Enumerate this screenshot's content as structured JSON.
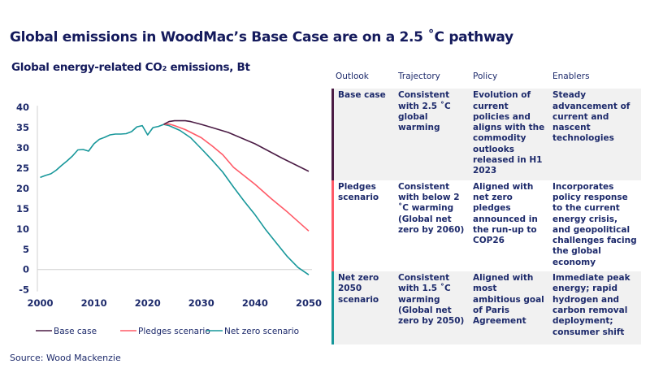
{
  "title": "Global emissions in WoodMac’s Base Case are on a 2.5 ˚C pathway",
  "subtitle": "Global energy-related CO₂ emissions, Bt",
  "source": "Source: Wood Mackenzie",
  "chart_data": {
    "type": "line",
    "title": "Global energy-related CO₂ emissions, Bt",
    "xlim": [
      2000,
      2050
    ],
    "ylim": [
      -5,
      40
    ],
    "x_ticks": [
      "2000",
      "2010",
      "2020",
      "2030",
      "2040",
      "2050"
    ],
    "y_ticks": [
      "40",
      "35",
      "30",
      "25",
      "20",
      "15",
      "10",
      "5",
      "0",
      "-5"
    ],
    "grid": false,
    "legend": "bottom",
    "historical": {
      "x": [
        2000,
        2001,
        2002,
        2003,
        2004,
        2005,
        2006,
        2007,
        2008,
        2009,
        2010,
        2011,
        2012,
        2013,
        2014,
        2015,
        2016,
        2017,
        2018,
        2019,
        2020,
        2021,
        2022,
        2023
      ],
      "y": [
        22.7,
        23.2,
        23.6,
        24.5,
        25.7,
        26.8,
        28.0,
        29.5,
        29.6,
        29.2,
        31.0,
        32.1,
        32.6,
        33.2,
        33.4,
        33.4,
        33.5,
        34.0,
        35.2,
        35.5,
        33.2,
        35.0,
        35.3,
        35.8
      ]
    },
    "series": [
      {
        "name": "Base case",
        "color": "#4b1c45",
        "x": [
          2023,
          2024,
          2025,
          2027,
          2028,
          2030,
          2032,
          2035,
          2040,
          2045,
          2050
        ],
        "y": [
          35.8,
          36.5,
          36.7,
          36.7,
          36.5,
          35.8,
          35.0,
          33.8,
          31.0,
          27.5,
          24.2
        ]
      },
      {
        "name": "Pledges scenario",
        "color": "#ff5a67",
        "x": [
          2023,
          2024,
          2025,
          2027,
          2030,
          2032,
          2034,
          2036,
          2040,
          2043,
          2046,
          2050
        ],
        "y": [
          35.8,
          35.9,
          35.5,
          34.5,
          32.5,
          30.5,
          28.3,
          25.2,
          21.0,
          17.5,
          14.2,
          9.5
        ]
      },
      {
        "name": "Net zero scenario",
        "color": "#17979a",
        "x": [
          2023,
          2024,
          2026,
          2028,
          2030,
          2032,
          2034,
          2036,
          2038,
          2040,
          2042,
          2044,
          2046,
          2048,
          2050
        ],
        "y": [
          35.8,
          35.5,
          34.3,
          32.5,
          29.8,
          27.0,
          24.0,
          20.3,
          16.8,
          13.5,
          9.8,
          6.5,
          3.2,
          0.5,
          -1.3
        ]
      }
    ]
  },
  "table": {
    "headers": [
      "Outlook",
      "Trajectory",
      "Policy",
      "Enablers"
    ],
    "rows": [
      {
        "color": "#4b1c45",
        "cells": [
          "Base case",
          "Consistent with 2.5 ˚C global warming",
          "Evolution of current policies and aligns with the commodity outlooks released in H1 2023",
          "Steady advancement of current and nascent technologies"
        ]
      },
      {
        "color": "#ff5a67",
        "cells": [
          "Pledges scenario",
          "Consistent with below 2 ˚C warming (Global net zero by 2060)",
          "Aligned with net zero pledges announced in the run-up to COP26",
          "Incorporates policy response to the current energy crisis, and geopolitical challenges facing the global economy"
        ]
      },
      {
        "color": "#17979a",
        "cells": [
          "Net zero 2050 scenario",
          "Consistent with 1.5 ˚C warming (Global net zero by 2050)",
          "Aligned with most ambitious goal of Paris Agreement",
          "Immediate peak energy; rapid hydrogen and carbon removal deployment; consumer shift"
        ]
      }
    ]
  }
}
